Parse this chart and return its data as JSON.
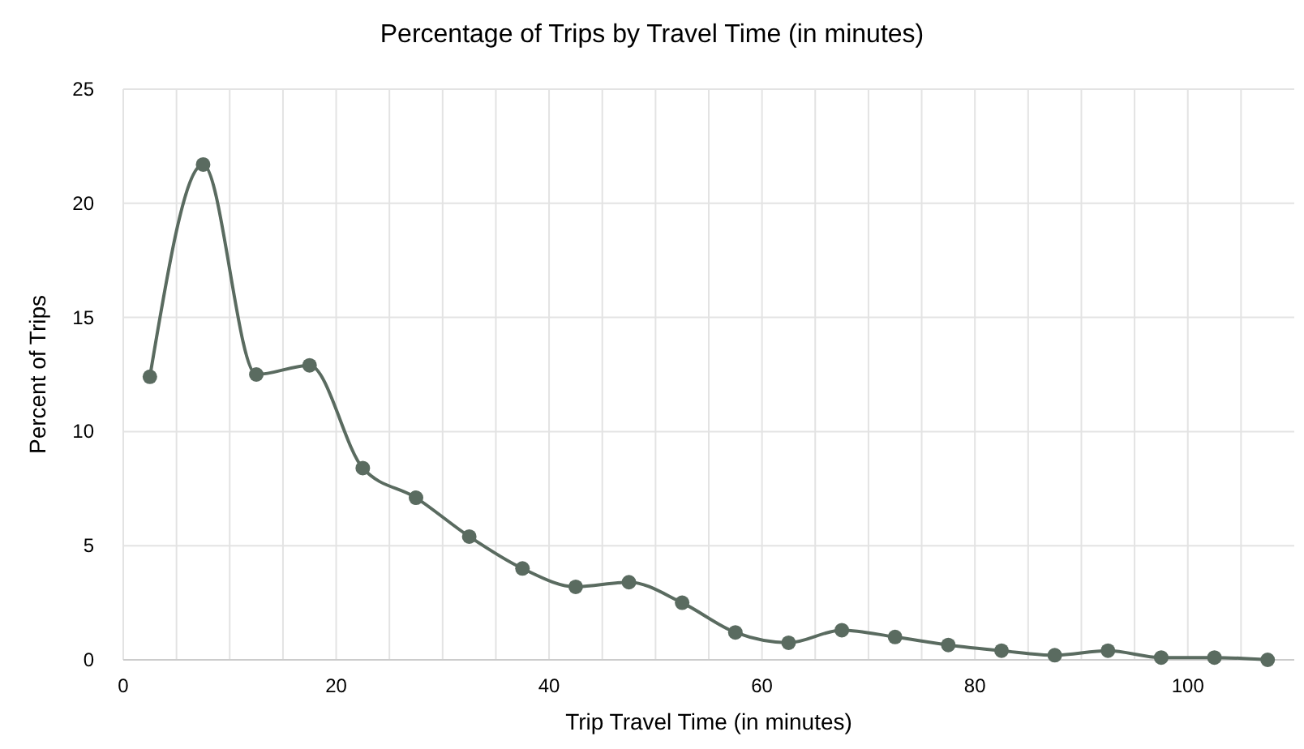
{
  "chart_data": {
    "type": "line",
    "title": "Percentage of Trips by Travel Time (in minutes)",
    "xlabel": "Trip Travel Time (in minutes)",
    "ylabel": "Percent of Trips",
    "x": [
      2.5,
      7.5,
      12.5,
      17.5,
      22.5,
      27.5,
      32.5,
      37.5,
      42.5,
      47.5,
      52.5,
      57.5,
      62.5,
      67.5,
      72.5,
      77.5,
      82.5,
      87.5,
      92.5,
      97.5,
      102.5,
      107.5
    ],
    "series": [
      {
        "color": "#5a6b60",
        "values": [
          12.4,
          21.7,
          12.5,
          12.9,
          8.4,
          7.1,
          5.4,
          4.0,
          3.2,
          3.4,
          2.5,
          1.2,
          0.75,
          1.3,
          1.0,
          0.65,
          0.4,
          0.2,
          0.4,
          0.1,
          0.1,
          0
        ]
      }
    ],
    "xlim": [
      0,
      110
    ],
    "ylim": [
      0,
      25
    ],
    "xticks": [
      0,
      {
        "value": 5,
        "label": null
      },
      {
        "value": 10,
        "label": null
      },
      {
        "value": 15,
        "label": null
      },
      20,
      {
        "value": 25,
        "label": null
      },
      {
        "value": 30,
        "label": null
      },
      {
        "value": 35,
        "label": null
      },
      40,
      {
        "value": 45,
        "label": null
      },
      {
        "value": 50,
        "label": null
      },
      {
        "value": 55,
        "label": null
      },
      60,
      {
        "value": 65,
        "label": null
      },
      {
        "value": 70,
        "label": null
      },
      {
        "value": 75,
        "label": null
      },
      80,
      {
        "value": 85,
        "label": null
      },
      {
        "value": 90,
        "label": null
      },
      {
        "value": 95,
        "label": null
      },
      100,
      {
        "value": 105,
        "label": null
      }
    ],
    "yticks": [
      0,
      5,
      10,
      15,
      20,
      25
    ],
    "grid": true,
    "marker": "circle",
    "line_style": "solid"
  }
}
